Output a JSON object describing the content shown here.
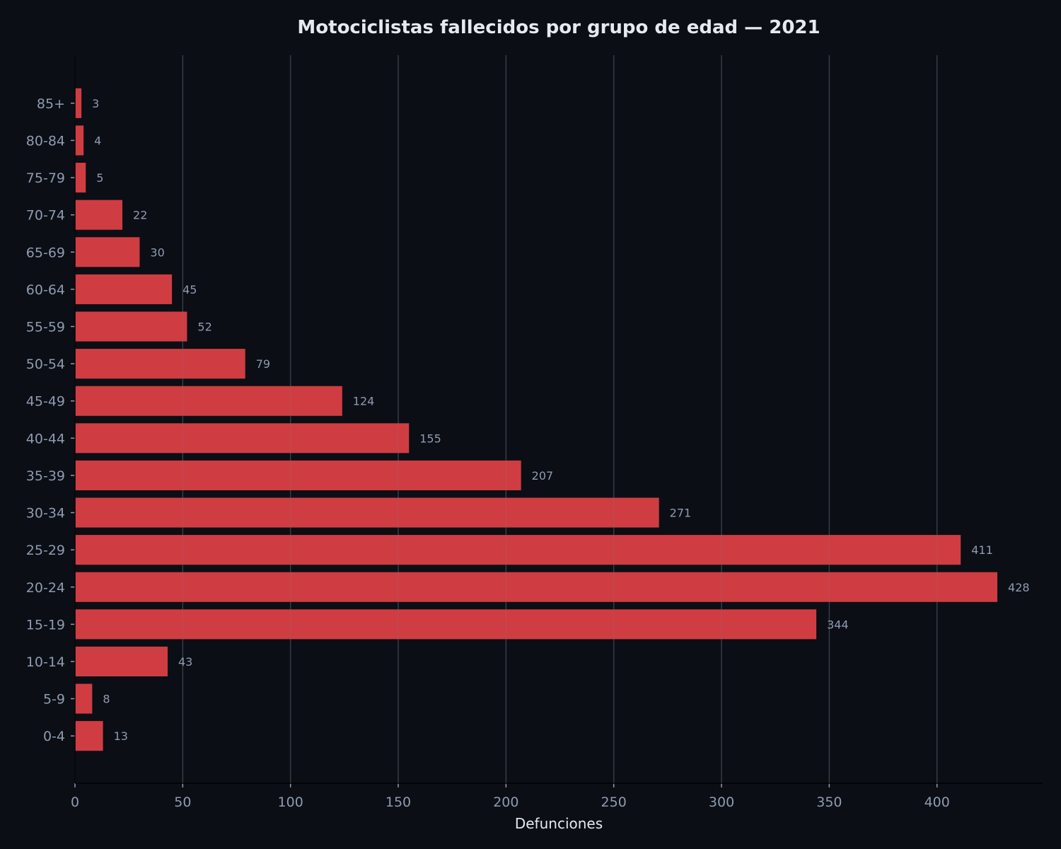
{
  "chart_data": {
    "type": "bar",
    "orientation": "horizontal",
    "title": "Motociclistas fallecidos por grupo de edad — 2021",
    "xlabel": "Defunciones",
    "ylabel": "",
    "categories": [
      "0-4",
      "5-9",
      "10-14",
      "15-19",
      "20-24",
      "25-29",
      "30-34",
      "35-39",
      "40-44",
      "45-49",
      "50-54",
      "55-59",
      "60-64",
      "65-69",
      "70-74",
      "75-79",
      "80-84",
      "85+"
    ],
    "values": [
      13,
      8,
      43,
      344,
      428,
      411,
      271,
      207,
      155,
      124,
      79,
      52,
      45,
      30,
      22,
      5,
      4,
      3
    ],
    "xlim": [
      0,
      449
    ],
    "xticks": [
      0,
      50,
      100,
      150,
      200,
      250,
      300,
      350,
      400
    ],
    "grid": "x",
    "data_labels": true,
    "colors": {
      "bar": "#cf3d42",
      "background": "#0b0e15",
      "text": "#8f9bb0",
      "title": "#e6e9ef"
    }
  }
}
